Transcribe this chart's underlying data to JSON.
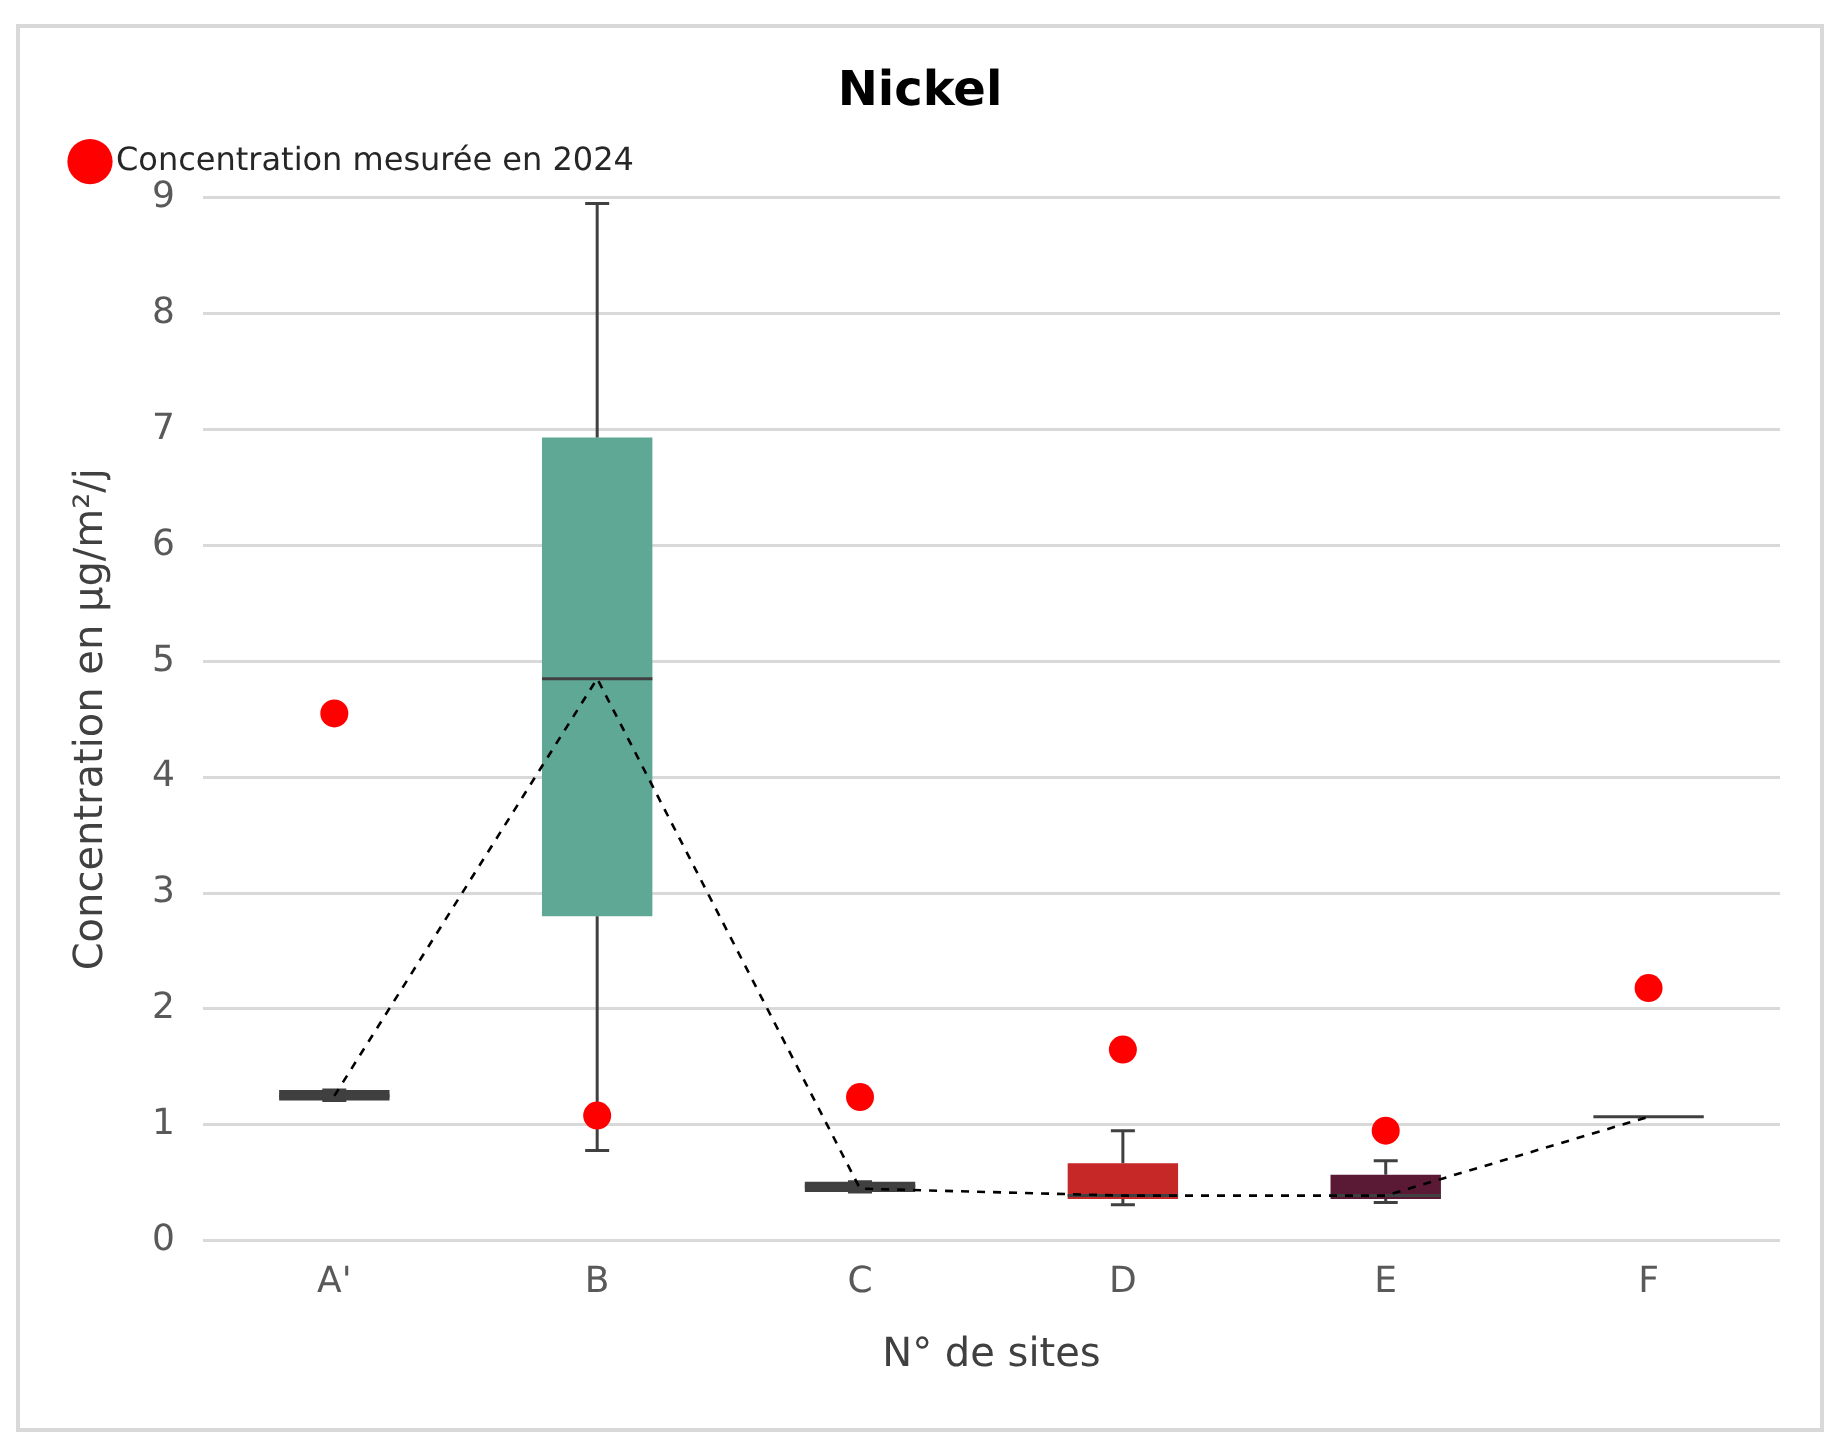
{
  "chart_data": {
    "type": "box",
    "title": "Nickel",
    "xlabel": "N° de sites",
    "ylabel": "Concentration en µg/m²/j",
    "categories": [
      "A'",
      "B",
      "C",
      "D",
      "E",
      "F"
    ],
    "boxes": [
      {
        "low": 1.21,
        "q1": 1.21,
        "median": 1.25,
        "q3": 1.3,
        "high": 1.3
      },
      {
        "low": 0.78,
        "q1": 2.8,
        "median": 4.85,
        "q3": 6.93,
        "high": 8.95
      },
      {
        "low": 0.42,
        "q1": 0.42,
        "median": 0.47,
        "q3": 0.51,
        "high": 0.51
      },
      {
        "low": 0.31,
        "q1": 0.36,
        "median": 0.39,
        "q3": 0.67,
        "high": 0.95
      },
      {
        "low": 0.33,
        "q1": 0.36,
        "median": 0.39,
        "q3": 0.57,
        "high": 0.69
      },
      {
        "low": 1.07,
        "q1": 1.07,
        "median": 1.07,
        "q3": 1.07,
        "high": 1.07
      }
    ],
    "colors": [
      "#3f3f3f",
      "#5fa896",
      "#3f3f3f",
      "#c62828",
      "#5a1a35",
      "#3f3f3f"
    ],
    "series": [
      {
        "type": "line",
        "color": "#000000",
        "line_style": "dashed",
        "marker": "none",
        "values": [
          1.25,
          4.85,
          0.45,
          0.39,
          0.39,
          1.07
        ]
      },
      {
        "type": "scatter",
        "name": "Concentration mesurée en 2024",
        "color": "#ff0000",
        "marker": "circle",
        "x": [
          "A'",
          "B",
          "C",
          "D",
          "E",
          "F"
        ],
        "values": [
          4.55,
          1.08,
          1.24,
          1.65,
          0.95,
          2.18
        ]
      }
    ],
    "ylim": [
      0,
      9
    ],
    "yticks": [
      0,
      1,
      2,
      3,
      4,
      5,
      6,
      7,
      8,
      9
    ],
    "grid": "y",
    "legend": "top left"
  }
}
